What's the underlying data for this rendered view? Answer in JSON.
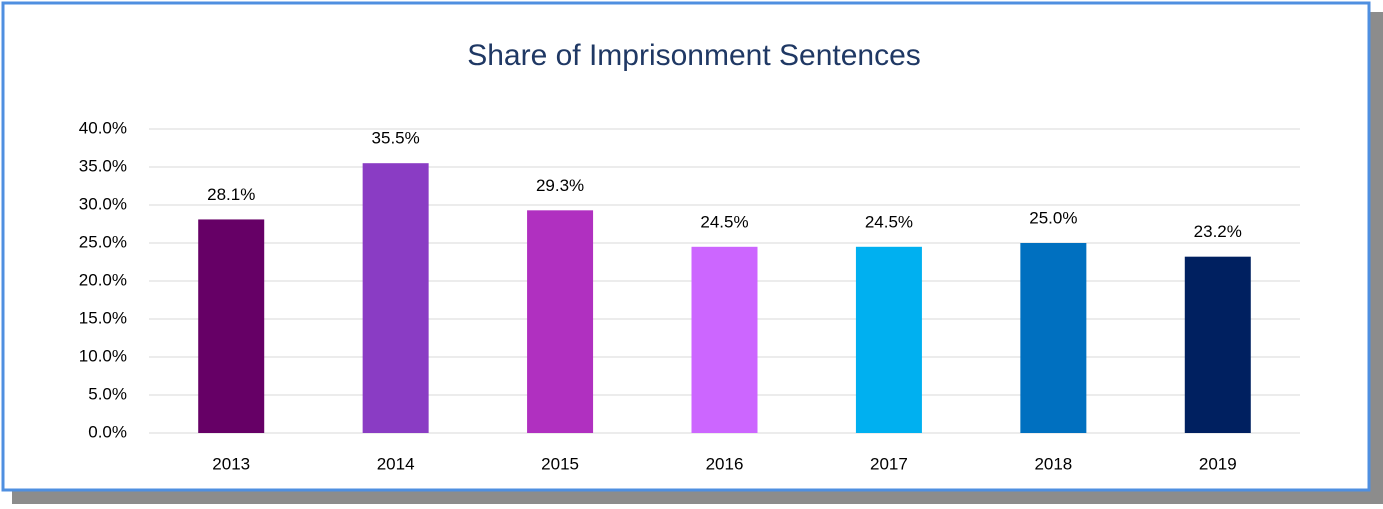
{
  "chart_data": {
    "type": "bar",
    "title": "Share of Imprisonment Sentences",
    "categories": [
      "2013",
      "2014",
      "2015",
      "2016",
      "2017",
      "2018",
      "2019"
    ],
    "values": [
      28.1,
      35.5,
      29.3,
      24.5,
      24.5,
      25.0,
      23.2
    ],
    "value_labels": [
      "28.1%",
      "35.5%",
      "29.3%",
      "24.5%",
      "24.5%",
      "25.0%",
      "23.2%"
    ],
    "colors": [
      "#660066",
      "#8a3cc4",
      "#b030c0",
      "#cc66ff",
      "#00b0f0",
      "#0070c0",
      "#002060"
    ],
    "ylim": [
      0,
      40
    ],
    "yticks": [
      {
        "value": 0,
        "label": "0.0%"
      },
      {
        "value": 5,
        "label": "5.0%"
      },
      {
        "value": 10,
        "label": "10.0%"
      },
      {
        "value": 15,
        "label": "15.0%"
      },
      {
        "value": 20,
        "label": "20.0%"
      },
      {
        "value": 25,
        "label": "25.0%"
      },
      {
        "value": 30,
        "label": "30.0%"
      },
      {
        "value": 35,
        "label": "35.0%"
      },
      {
        "value": 40,
        "label": "40.0%"
      }
    ],
    "grid": true
  }
}
